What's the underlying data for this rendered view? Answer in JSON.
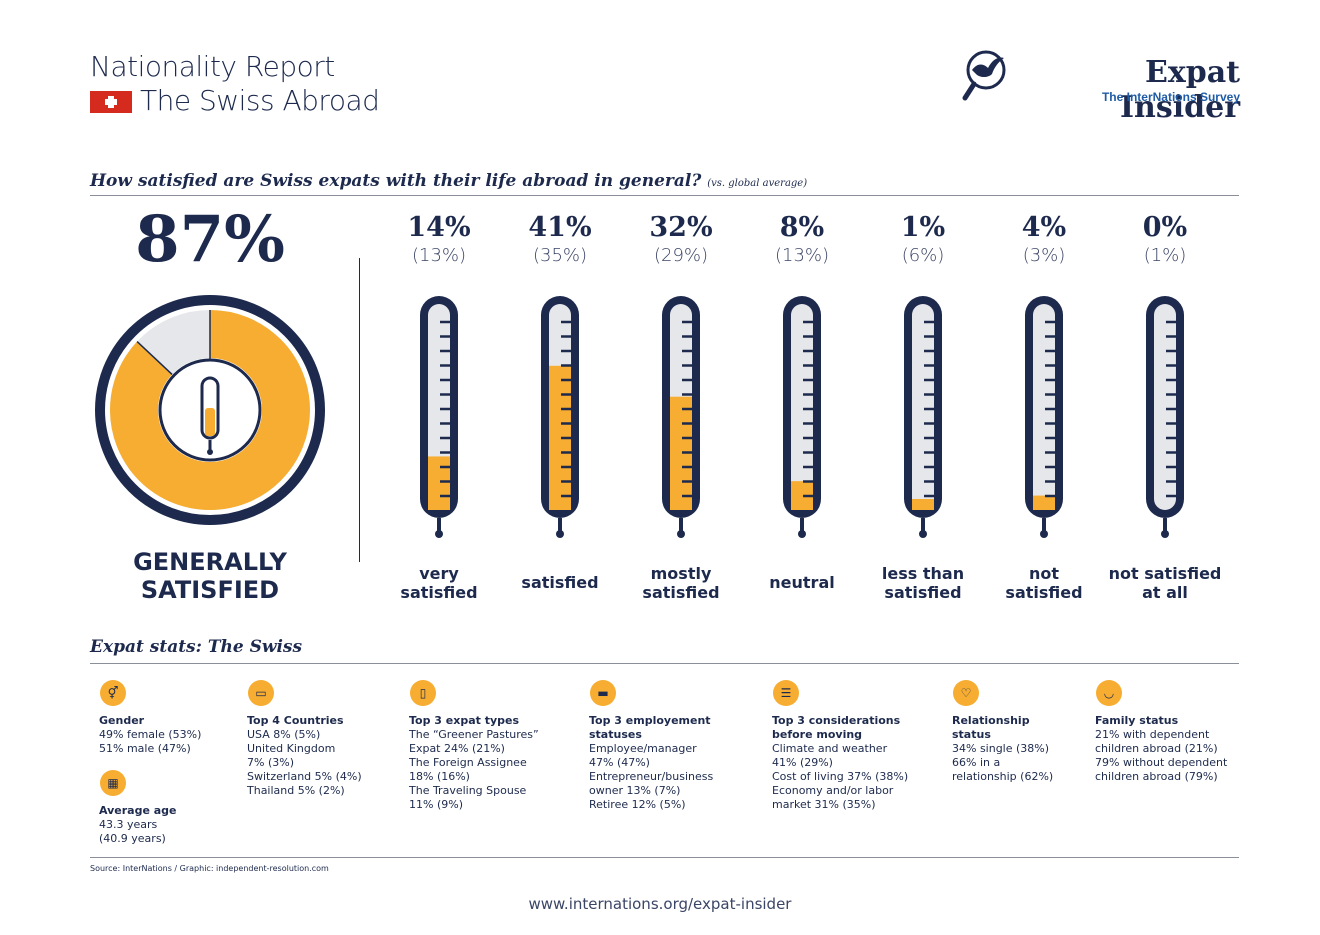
{
  "header": {
    "report_line": "Nationality Report",
    "country_line": "The Swiss Abroad",
    "brand": "Expat Insider",
    "brand_sub": "The InterNations Survey"
  },
  "question": {
    "text": "How satisfied are Swiss expats with their life abroad in general?",
    "note": "(vs. global average)"
  },
  "overall": {
    "value": "87%",
    "value_fraction": 0.87,
    "label_line1": "GENERALLY",
    "label_line2": "SATISFIED"
  },
  "colors": {
    "accent": "#f6ad31",
    "navy": "#1d2a4d",
    "empty": "#e6e7ea",
    "flag": "#d52b1e"
  },
  "chart_data": {
    "type": "bar",
    "categories": [
      "very satisfied",
      "satisfied",
      "mostly satisfied",
      "neutral",
      "less than satisfied",
      "not satisfied",
      "not satisfied at all"
    ],
    "series": [
      {
        "values": [
          14,
          41,
          32,
          8,
          1,
          4,
          0
        ]
      },
      {
        "values": [
          13,
          35,
          29,
          13,
          6,
          3,
          1
        ]
      }
    ],
    "fill_levels": [
      0.26,
      0.7,
      0.55,
      0.14,
      0.03,
      0.07,
      0.0
    ]
  },
  "columns": [
    {
      "pct": "14%",
      "avg": "(13%)",
      "label1": "very",
      "label2": "satisfied"
    },
    {
      "pct": "41%",
      "avg": "(35%)",
      "label1": "satisfied",
      "label2": ""
    },
    {
      "pct": "32%",
      "avg": "(29%)",
      "label1": "mostly",
      "label2": "satisfied"
    },
    {
      "pct": "8%",
      "avg": "(13%)",
      "label1": "neutral",
      "label2": ""
    },
    {
      "pct": "1%",
      "avg": "(6%)",
      "label1": "less than",
      "label2": "satisfied"
    },
    {
      "pct": "4%",
      "avg": "(3%)",
      "label1": "not",
      "label2": "satisfied"
    },
    {
      "pct": "0%",
      "avg": "(1%)",
      "label1": "not satisfied",
      "label2": "at all"
    }
  ],
  "stats_title": "Expat stats: The Swiss",
  "stats": {
    "gender": {
      "icon": "gender-icon",
      "title": "Gender",
      "lines": [
        "49% female (53%)",
        "51% male (47%)"
      ]
    },
    "age": {
      "icon": "calendar-icon",
      "title": "Average age",
      "lines": [
        "43.3 years",
        "(40.9 years)"
      ]
    },
    "countries": {
      "icon": "map-icon",
      "title": "Top 4 Countries",
      "lines": [
        "USA 8% (5%)",
        "United Kingdom",
        "7% (3%)",
        "Switzerland 5% (4%)",
        "Thailand 5% (2%)"
      ]
    },
    "types": {
      "icon": "door-icon",
      "title": "Top 3 expat types",
      "lines": [
        "The “Greener Pastures”",
        "Expat 24% (21%)",
        "The Foreign Assignee",
        "18% (16%)",
        "The Traveling Spouse",
        "11% (9%)"
      ]
    },
    "employment": {
      "icon": "briefcase-icon",
      "title_line1": "Top 3 employement",
      "title_line2": "statuses",
      "lines": [
        "Employee/manager",
        "47% (47%)",
        "Entrepreneur/business",
        "owner 13% (7%)",
        "Retiree 12% (5%)"
      ]
    },
    "considerations": {
      "icon": "list-icon",
      "title_line1": "Top 3 considerations",
      "title_line2": "before moving",
      "lines": [
        "Climate and weather",
        "41% (29%)",
        "Cost of living 37% (38%)",
        "Economy and/or labor",
        "market 31% (35%)"
      ]
    },
    "relationship": {
      "icon": "heart-icon",
      "title_line1": "Relationship",
      "title_line2": "status",
      "lines": [
        "34% single (38%)",
        "66% in a",
        "relationship (62%)"
      ]
    },
    "family": {
      "icon": "stroller-icon",
      "title": "Family status",
      "lines": [
        "21% with dependent",
        "children abroad (21%)",
        "79% without dependent",
        "children abroad (79%)"
      ]
    }
  },
  "footer": {
    "source": "Source: InterNations / Graphic: independent-resolution.com",
    "url": "www.internations.org/expat-insider"
  }
}
